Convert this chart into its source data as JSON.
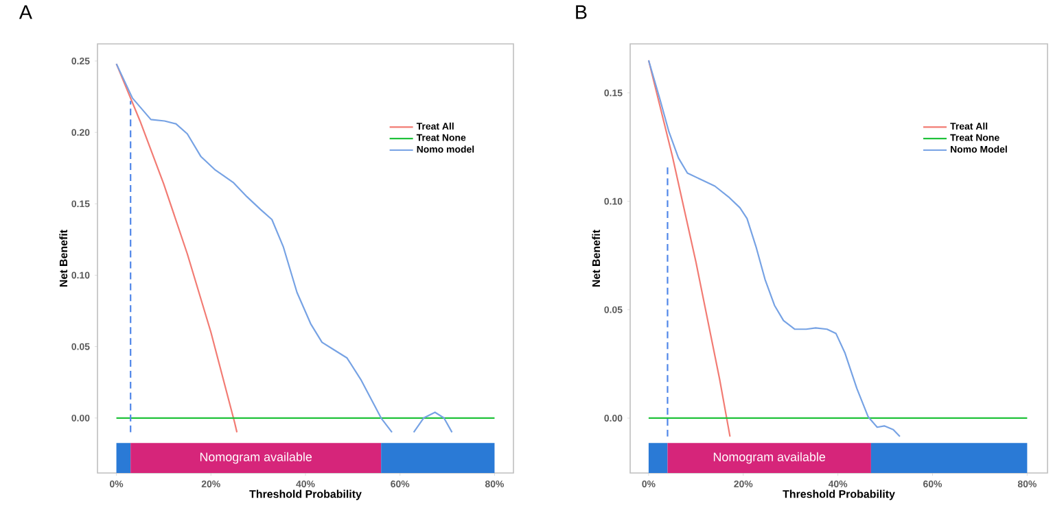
{
  "chart_data": [
    {
      "type": "line",
      "title": "A",
      "xlabel": "Threshold Probability",
      "ylabel": "Net Benefit",
      "xlim": [
        -4,
        84
      ],
      "ylim": [
        -0.0385,
        0.262
      ],
      "xticks": [
        {
          "value": 0,
          "label": "0%"
        },
        {
          "value": 20,
          "label": "20%"
        },
        {
          "value": 40,
          "label": "40%"
        },
        {
          "value": 60,
          "label": "60%"
        },
        {
          "value": 80,
          "label": "80%"
        }
      ],
      "yticks": [
        {
          "value": 0,
          "label": "0.00"
        },
        {
          "value": 0.05,
          "label": "0.05"
        },
        {
          "value": 0.1,
          "label": "0.10"
        },
        {
          "value": 0.15,
          "label": "0.15"
        },
        {
          "value": 0.2,
          "label": "0.20"
        },
        {
          "value": 0.25,
          "label": "0.25"
        }
      ],
      "grid": false,
      "legend": "top right",
      "marker": "none",
      "bands": [
        {
          "axis": "x",
          "from": 0,
          "to": 3,
          "color": "#2a7ad6"
        },
        {
          "axis": "x",
          "from": 3,
          "to": 56,
          "color": "#d6257a",
          "label": "Nomogram available"
        },
        {
          "axis": "x",
          "from": 56,
          "to": 80,
          "color": "#2a7ad6"
        }
      ],
      "series": [
        {
          "name": "Treat All",
          "color": "#f27b73",
          "x": [
            0,
            5,
            10,
            15,
            20,
            25,
            25.5
          ],
          "values": [
            0.248,
            0.208,
            0.164,
            0.115,
            0.06,
            -0.003,
            -0.01
          ]
        },
        {
          "name": "Treat None",
          "color": "#1fc23a",
          "x": [
            0,
            80
          ],
          "values": [
            0,
            0
          ]
        },
        {
          "name": "Nomo model",
          "color": "#76a2e4",
          "x": [
            0,
            3.4,
            7.3,
            10.2,
            12.6,
            15,
            17.9,
            20.8,
            24.7,
            27.6,
            30.5,
            32.9,
            35.3,
            38.2,
            41.1,
            43.5,
            45.9,
            48.8,
            51.7,
            56,
            58.3,
            60.5,
            62.9,
            65,
            67.4,
            69.3,
            71
          ],
          "values": [
            0.248,
            0.224,
            0.209,
            0.208,
            0.206,
            0.199,
            0.183,
            0.174,
            0.165,
            0.155,
            0.146,
            0.139,
            0.12,
            0.088,
            0.066,
            0.053,
            0.048,
            0.042,
            0.027,
            0,
            -0.01,
            null,
            -0.01,
            0.0,
            0.004,
            0.0,
            -0.01
          ]
        },
        {
          "color": "#4f86e8",
          "line_style": "dashed",
          "x": [
            3,
            3
          ],
          "values": [
            -0.01,
            0.222
          ]
        }
      ]
    },
    {
      "type": "line",
      "title": "B",
      "xlabel": "Threshold Probability",
      "ylabel": "Net Benefit",
      "xlim": [
        -3.9,
        84.3
      ],
      "ylim": [
        -0.0253,
        0.1726
      ],
      "xticks": [
        {
          "value": 0,
          "label": "0%"
        },
        {
          "value": 20,
          "label": "20%"
        },
        {
          "value": 40,
          "label": "40%"
        },
        {
          "value": 60,
          "label": "60%"
        },
        {
          "value": 80,
          "label": "80%"
        }
      ],
      "yticks": [
        {
          "value": 0,
          "label": "0.00"
        },
        {
          "value": 0.05,
          "label": "0.05"
        },
        {
          "value": 0.1,
          "label": "0.10"
        },
        {
          "value": 0.15,
          "label": "0.15"
        }
      ],
      "grid": false,
      "legend": "top right",
      "marker": "none",
      "bands": [
        {
          "axis": "x",
          "from": 0,
          "to": 4,
          "color": "#2a7ad6"
        },
        {
          "axis": "x",
          "from": 4,
          "to": 47,
          "color": "#d6257a",
          "label": "Nomogram available"
        },
        {
          "axis": "x",
          "from": 47,
          "to": 80,
          "color": "#2a7ad6"
        }
      ],
      "series": [
        {
          "name": "Treat All",
          "color": "#f27b73",
          "x": [
            0,
            5,
            10,
            15,
            17.2
          ],
          "values": [
            0.165,
            0.121,
            0.072,
            0.018,
            -0.0085
          ]
        },
        {
          "name": "Treat None",
          "color": "#1fc23a",
          "x": [
            0,
            80
          ],
          "values": [
            0,
            0
          ]
        },
        {
          "name": "Nomo Model",
          "color": "#76a2e4",
          "x": [
            0,
            2.4,
            4.3,
            6.3,
            8.2,
            11.1,
            14,
            16.9,
            19.3,
            20.8,
            22.7,
            24.6,
            26.6,
            28.5,
            30.9,
            33.3,
            35.3,
            37.7,
            39.6,
            41.5,
            44,
            46.4,
            48.3,
            49.8,
            51.7,
            53.1
          ],
          "values": [
            0.165,
            0.147,
            0.132,
            0.12,
            0.113,
            0.11,
            0.107,
            0.102,
            0.097,
            0.092,
            0.079,
            0.064,
            0.052,
            0.045,
            0.041,
            0.041,
            0.0416,
            0.041,
            0.039,
            0.03,
            0.0137,
            0.0006,
            -0.0042,
            -0.0036,
            -0.0053,
            -0.0085
          ]
        },
        {
          "color": "#4f86e8",
          "line_style": "dashed",
          "x": [
            4,
            4
          ],
          "values": [
            -0.0085,
            0.116
          ]
        }
      ]
    }
  ]
}
